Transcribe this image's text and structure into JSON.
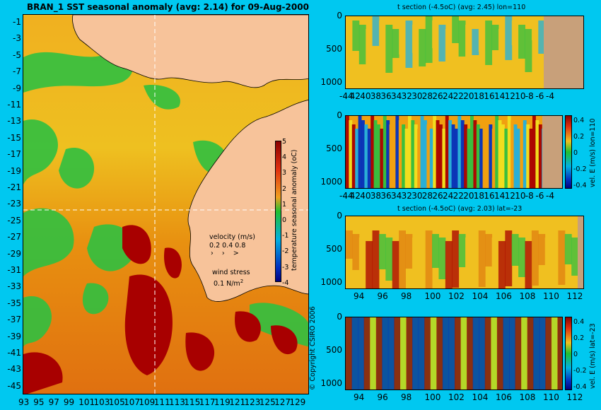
{
  "map": {
    "title": "BRAN_1  SST seasonal anomaly  (avg: 2.14)  for 09-Aug-2000",
    "lat_labels": [
      "-1",
      "-3",
      "-5",
      "-7",
      "-9",
      "-11",
      "-13",
      "-15",
      "-17",
      "-19",
      "-21",
      "-23",
      "-25",
      "-27",
      "-29",
      "-31",
      "-33",
      "-35",
      "-37",
      "-39",
      "-41",
      "-43",
      "-45"
    ],
    "lon_labels": [
      "93",
      "95",
      "97",
      "99",
      "101",
      "103",
      "105",
      "107",
      "109",
      "111",
      "113",
      "115",
      "117",
      "119",
      "121",
      "123",
      "125",
      "127",
      "129"
    ],
    "colorbar": {
      "label": "temperature seasonal anomaly (oC)",
      "ticks": [
        "5",
        "4",
        "3",
        "2",
        "1",
        "0",
        "-1",
        "-2",
        "-3",
        "-4"
      ]
    },
    "legend": {
      "velocity_title": "velocity (m/s)",
      "velocity_values": "0.2 0.4 0.8",
      "wind_title": "wind stress",
      "wind_value": "0.1 N/m",
      "wind_sup": "2"
    },
    "copyright": "© Copyright CSIRO 2006"
  },
  "sections": [
    {
      "title": "t section (-4.5oC)  (avg: 2.45)  lon=110",
      "x_labels": [
        "-44",
        "42",
        "40",
        "38",
        "36",
        "34",
        "32",
        "30",
        "28",
        "26",
        "24",
        "22",
        "20",
        "18",
        "16",
        "14",
        "12",
        "10",
        "-8",
        "-6",
        "-4"
      ],
      "y_labels": [
        "0",
        "500",
        "1000"
      ],
      "colorbar": null
    },
    {
      "title": "",
      "x_labels": [
        "-44",
        "42",
        "40",
        "38",
        "36",
        "34",
        "32",
        "30",
        "28",
        "26",
        "24",
        "22",
        "20",
        "18",
        "16",
        "14",
        "12",
        "10",
        "-8",
        "-6",
        "-4"
      ],
      "y_labels": [
        "0",
        "500",
        "1000"
      ],
      "colorbar": {
        "label": "vel. E (m/s) lon=110",
        "ticks": [
          "0.4",
          "0.2",
          "0",
          "-0.2",
          "-0.4"
        ]
      }
    },
    {
      "title": "t section (-4.5oC)  (avg: 2.03)  lat=-23",
      "x_labels": [
        "94",
        "96",
        "98",
        "100",
        "102",
        "104",
        "106",
        "108",
        "110",
        "112"
      ],
      "y_labels": [
        "0",
        "500",
        "1000"
      ],
      "colorbar": null
    },
    {
      "title": "",
      "x_labels": [
        "94",
        "96",
        "98",
        "100",
        "102",
        "104",
        "106",
        "108",
        "110",
        "112"
      ],
      "y_labels": [
        "0",
        "500",
        "1000"
      ],
      "colorbar": {
        "label": "vel. E (m/s) lat=-23",
        "ticks": [
          "0.4",
          "0.2",
          "0",
          "-0.2",
          "-0.4"
        ]
      }
    }
  ],
  "colors": {
    "background": "#00c8f0",
    "land": "#f7c39a",
    "section_land": "#c8a07a",
    "warm": "#e8aa10",
    "hot": "#a80000",
    "cool": "#22c030"
  }
}
